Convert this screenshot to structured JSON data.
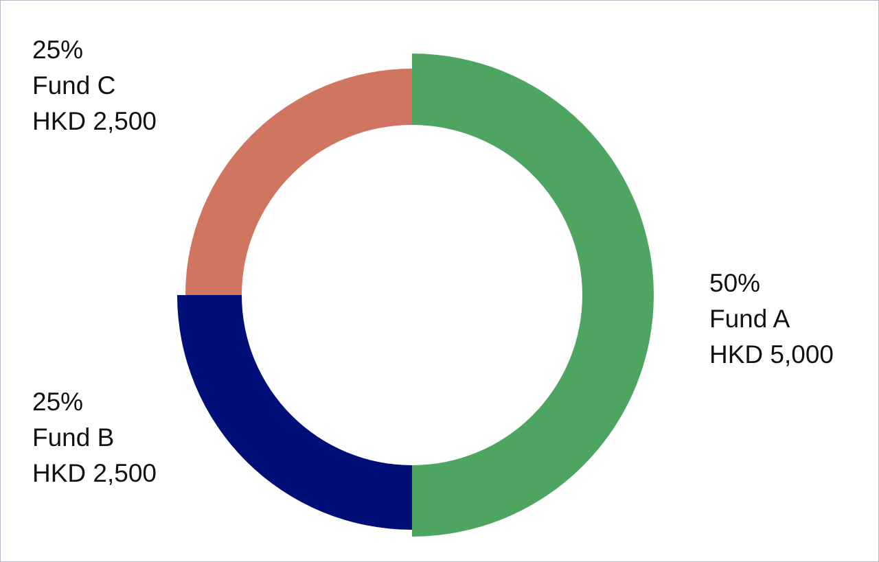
{
  "chart_data": {
    "type": "donut",
    "categories": [
      "Fund A",
      "Fund B",
      "Fund C"
    ],
    "values": [
      50,
      25,
      25
    ],
    "value_labels": [
      "50%",
      "25%",
      "25%"
    ],
    "amount_labels": [
      "HKD 5,000",
      "HKD 2,500",
      "HKD 2,500"
    ],
    "colors": [
      "#4ea562",
      "#000e78",
      "#d07560"
    ]
  }
}
